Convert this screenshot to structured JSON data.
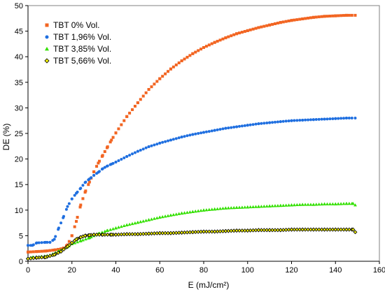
{
  "chart_data": {
    "type": "scatter",
    "xlabel": "E (mJ/cm²)",
    "ylabel": "DE (%)",
    "xlim": [
      0,
      160
    ],
    "ylim": [
      0,
      50
    ],
    "xticks": [
      0,
      20,
      40,
      60,
      80,
      100,
      120,
      140,
      160
    ],
    "yticks": [
      0,
      5,
      10,
      15,
      20,
      25,
      30,
      35,
      40,
      45,
      50
    ],
    "grid": false,
    "legend_position": "top-left",
    "series": [
      {
        "name": "TBT 0% Vol.",
        "color": "#f26522",
        "marker": "square",
        "points": [
          [
            0,
            1.8
          ],
          [
            4,
            1.9
          ],
          [
            8,
            2.0
          ],
          [
            12,
            2.2
          ],
          [
            16,
            2.5
          ],
          [
            18,
            3.2
          ],
          [
            20,
            5.0
          ],
          [
            22,
            7.8
          ],
          [
            24,
            11.0
          ],
          [
            26,
            13.5
          ],
          [
            28,
            15.5
          ],
          [
            30,
            17.5
          ],
          [
            32,
            19.2
          ],
          [
            34,
            20.7
          ],
          [
            36,
            22.2
          ],
          [
            38,
            23.7
          ],
          [
            40,
            25.1
          ],
          [
            45,
            28.3
          ],
          [
            50,
            31.0
          ],
          [
            55,
            33.6
          ],
          [
            60,
            35.7
          ],
          [
            65,
            37.6
          ],
          [
            70,
            39.2
          ],
          [
            75,
            40.6
          ],
          [
            80,
            41.8
          ],
          [
            85,
            42.8
          ],
          [
            90,
            43.7
          ],
          [
            95,
            44.5
          ],
          [
            100,
            45.1
          ],
          [
            105,
            45.7
          ],
          [
            110,
            46.2
          ],
          [
            115,
            46.7
          ],
          [
            120,
            47.1
          ],
          [
            125,
            47.4
          ],
          [
            130,
            47.7
          ],
          [
            135,
            47.9
          ],
          [
            140,
            48.0
          ],
          [
            145,
            48.1
          ],
          [
            149,
            48.1
          ]
        ]
      },
      {
        "name": "TBT 1,96% Vol.",
        "color": "#1f6fe0",
        "marker": "circle",
        "points": [
          [
            0,
            3.1
          ],
          [
            2,
            3.1
          ],
          [
            4,
            3.6
          ],
          [
            8,
            3.7
          ],
          [
            10,
            3.7
          ],
          [
            12,
            4.3
          ],
          [
            14,
            6.5
          ],
          [
            16,
            8.5
          ],
          [
            18,
            10.7
          ],
          [
            20,
            12.2
          ],
          [
            22,
            13.3
          ],
          [
            24,
            14.3
          ],
          [
            26,
            15.4
          ],
          [
            28,
            16.1
          ],
          [
            30,
            16.8
          ],
          [
            32,
            17.4
          ],
          [
            34,
            18.1
          ],
          [
            36,
            18.6
          ],
          [
            38,
            19.0
          ],
          [
            40,
            19.4
          ],
          [
            45,
            20.5
          ],
          [
            50,
            21.5
          ],
          [
            55,
            22.4
          ],
          [
            60,
            23.1
          ],
          [
            65,
            23.7
          ],
          [
            70,
            24.3
          ],
          [
            75,
            24.8
          ],
          [
            80,
            25.2
          ],
          [
            85,
            25.6
          ],
          [
            90,
            26.0
          ],
          [
            95,
            26.3
          ],
          [
            100,
            26.6
          ],
          [
            105,
            26.9
          ],
          [
            110,
            27.1
          ],
          [
            115,
            27.3
          ],
          [
            120,
            27.5
          ],
          [
            125,
            27.6
          ],
          [
            130,
            27.7
          ],
          [
            135,
            27.8
          ],
          [
            140,
            27.9
          ],
          [
            145,
            28.0
          ],
          [
            149,
            28.0
          ]
        ]
      },
      {
        "name": "TBT 3,85% Vol.",
        "color": "#33e000",
        "marker": "triangle",
        "points": [
          [
            0,
            0.6
          ],
          [
            2,
            0.8
          ],
          [
            6,
            0.9
          ],
          [
            10,
            1.2
          ],
          [
            14,
            2.0
          ],
          [
            18,
            2.8
          ],
          [
            20,
            3.4
          ],
          [
            24,
            4.0
          ],
          [
            28,
            4.6
          ],
          [
            32,
            5.4
          ],
          [
            36,
            6.0
          ],
          [
            40,
            6.5
          ],
          [
            45,
            7.1
          ],
          [
            50,
            7.6
          ],
          [
            55,
            8.1
          ],
          [
            60,
            8.6
          ],
          [
            65,
            9.0
          ],
          [
            70,
            9.4
          ],
          [
            75,
            9.7
          ],
          [
            80,
            10.0
          ],
          [
            85,
            10.2
          ],
          [
            90,
            10.4
          ],
          [
            95,
            10.5
          ],
          [
            100,
            10.6
          ],
          [
            105,
            10.7
          ],
          [
            110,
            10.8
          ],
          [
            115,
            10.9
          ],
          [
            120,
            11.0
          ],
          [
            125,
            11.1
          ],
          [
            130,
            11.1
          ],
          [
            135,
            11.2
          ],
          [
            140,
            11.2
          ],
          [
            145,
            11.3
          ],
          [
            148,
            11.3
          ],
          [
            149,
            11.0
          ]
        ]
      },
      {
        "name": "TBT 5,66% Vol.",
        "color": "#5c5c20",
        "marker": "diamond",
        "points": [
          [
            0,
            0.5
          ],
          [
            4,
            0.7
          ],
          [
            8,
            0.8
          ],
          [
            12,
            1.3
          ],
          [
            15,
            1.9
          ],
          [
            18,
            2.9
          ],
          [
            20,
            3.6
          ],
          [
            22,
            4.3
          ],
          [
            24,
            4.7
          ],
          [
            26,
            5.0
          ],
          [
            28,
            5.1
          ],
          [
            30,
            5.2
          ],
          [
            34,
            5.2
          ],
          [
            38,
            5.2
          ],
          [
            40,
            5.2
          ],
          [
            45,
            5.3
          ],
          [
            50,
            5.3
          ],
          [
            55,
            5.4
          ],
          [
            60,
            5.5
          ],
          [
            65,
            5.5
          ],
          [
            70,
            5.6
          ],
          [
            75,
            5.7
          ],
          [
            80,
            5.8
          ],
          [
            85,
            5.8
          ],
          [
            90,
            5.9
          ],
          [
            95,
            6.0
          ],
          [
            100,
            6.0
          ],
          [
            105,
            6.1
          ],
          [
            110,
            6.1
          ],
          [
            115,
            6.1
          ],
          [
            120,
            6.2
          ],
          [
            125,
            6.2
          ],
          [
            130,
            6.2
          ],
          [
            135,
            6.2
          ],
          [
            140,
            6.2
          ],
          [
            145,
            6.2
          ],
          [
            148,
            6.2
          ],
          [
            149,
            5.7
          ]
        ]
      }
    ]
  }
}
